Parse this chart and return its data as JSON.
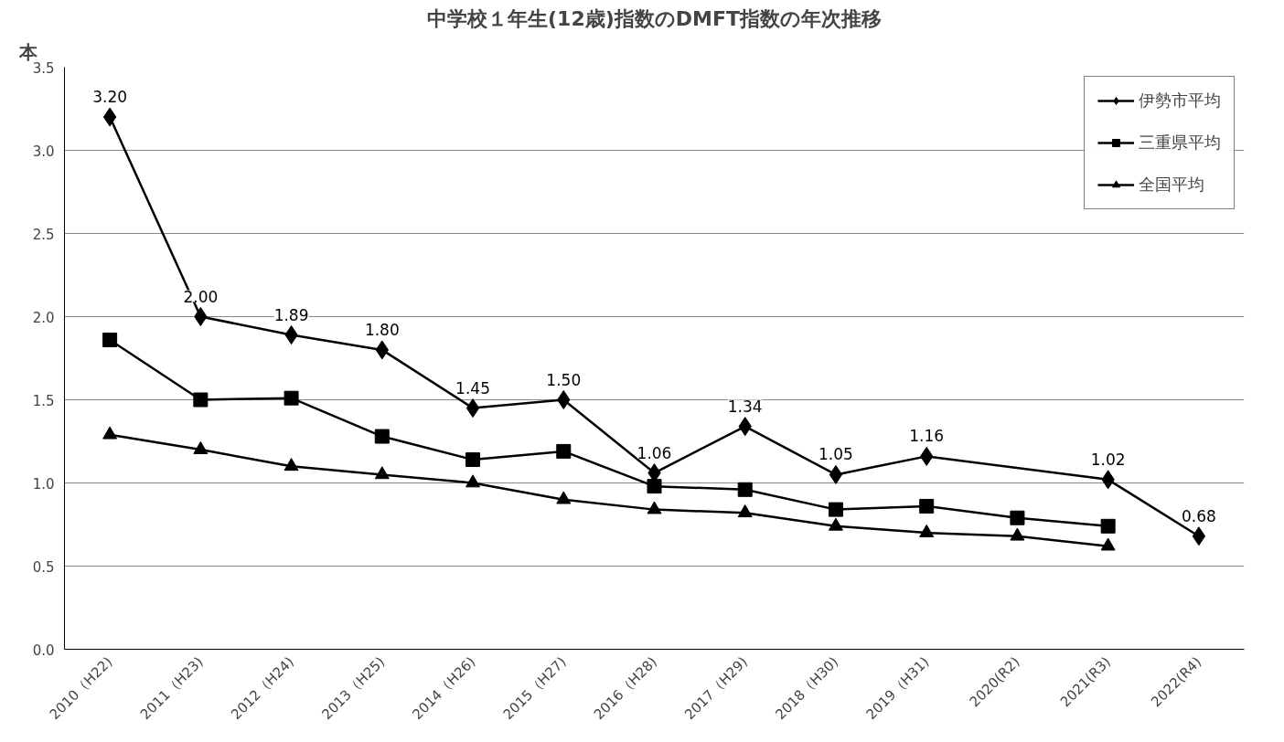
{
  "chart_data": {
    "type": "line",
    "title": "中学校１年生(12歳)指数のDMFT指数の年次推移",
    "ylabel": "本",
    "categories": [
      "2010（H22)",
      "2011（H23)",
      "2012（H24)",
      "2013（H25)",
      "2014（H26)",
      "2015（H27)",
      "2016（H28)",
      "2017（H29)",
      "2018（H30)",
      "2019（H31)",
      "2020(R2)",
      "2021(R3)",
      "2022(R4)"
    ],
    "series": [
      {
        "name": "伊勢市平均",
        "color": "#000000",
        "marker": "diamond",
        "values": [
          3.2,
          2.0,
          1.89,
          1.8,
          1.45,
          1.5,
          1.06,
          1.34,
          1.05,
          1.16,
          null,
          1.02,
          0.68
        ],
        "value_labels": [
          "3.20",
          "2.00",
          "1.89",
          "1.80",
          "1.45",
          "1.50",
          "1.06",
          "1.34",
          "1.05",
          "1.16",
          null,
          "1.02",
          "0.68"
        ]
      },
      {
        "name": "三重県平均",
        "color": "#000000",
        "marker": "square",
        "values": [
          1.86,
          1.5,
          1.51,
          1.28,
          1.14,
          1.19,
          0.98,
          0.96,
          0.84,
          0.86,
          0.79,
          0.74,
          null
        ]
      },
      {
        "name": "全国平均",
        "color": "#000000",
        "marker": "triangle",
        "values": [
          1.29,
          1.2,
          1.1,
          1.05,
          1.0,
          0.9,
          0.84,
          0.82,
          0.74,
          0.7,
          0.68,
          0.62,
          null
        ]
      }
    ],
    "ylim": [
      0,
      3.5
    ],
    "yticks": [
      {
        "value": 0,
        "label": "0.0"
      },
      {
        "value": 0.5,
        "label": "0.5"
      },
      {
        "value": 1,
        "label": "1.0"
      },
      {
        "value": 1.5,
        "label": "1.5"
      },
      {
        "value": 2,
        "label": "2.0"
      },
      {
        "value": 2.5,
        "label": "2.5"
      },
      {
        "value": 3,
        "label": "3.0"
      },
      {
        "value": 3.5,
        "label": "3.5"
      }
    ],
    "grid": "y",
    "legend": "top right"
  }
}
